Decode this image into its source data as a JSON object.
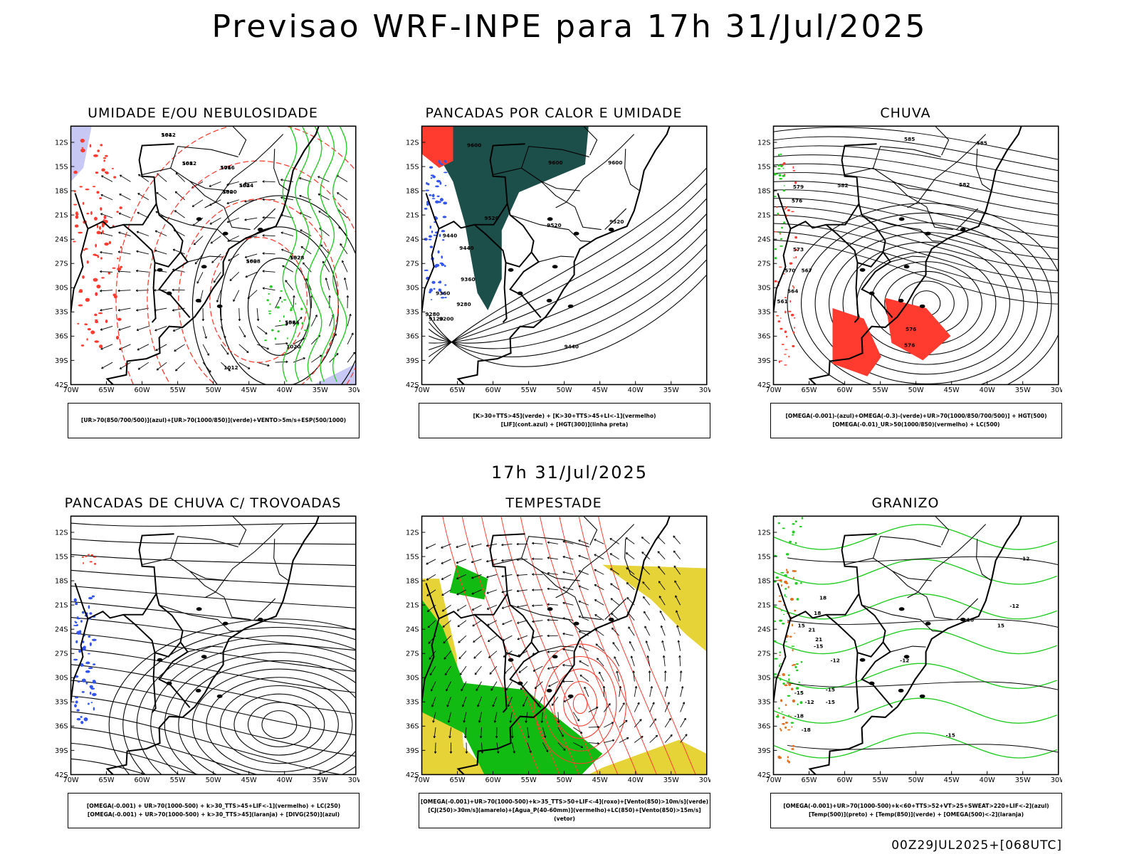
{
  "main_title": "Previsao WRF-INPE  para 17h 31/Jul/2025",
  "mid_title": "17h 31/Jul/2025",
  "footer": "00Z29JUL2025+[068UTC]",
  "axes": {
    "lat_labels": [
      "12S",
      "15S",
      "18S",
      "21S",
      "24S",
      "27S",
      "30S",
      "33S",
      "36S",
      "39S",
      "42S"
    ],
    "lon_labels": [
      "70W",
      "65W",
      "60W",
      "55W",
      "50W",
      "45W",
      "40W",
      "35W",
      "30W"
    ]
  },
  "colors": {
    "coast": "#000000",
    "red": "#ff3b30",
    "green": "#22cc22",
    "blue": "#3355ee",
    "lavender": "#c8c8f4",
    "teal": "#1d4f4a",
    "yellow": "#e6d338",
    "orange": "#e07020",
    "bright_green": "#11bb11"
  },
  "panels": [
    {
      "title": "UMIDADE E/OU NEBULOSIDADE",
      "legend": [
        "[UR>70(850/700/500)](azul)+[UR>70(1000/850)](verde)+VENTO>5m/s+ESP(500/1000)"
      ],
      "contour_labels": [
        "1012",
        "1012",
        "1016",
        "1020",
        "1024",
        "1028",
        "1028",
        "1024",
        "1020",
        "1012",
        "564",
        "568",
        "576",
        "580",
        "584",
        "560",
        "552",
        "556"
      ]
    },
    {
      "title": "PANCADAS POR CALOR E UMIDADE",
      "legend": [
        "[K>30+TTS>45](verde) + [K>30+TTS>45+LI<-1](vermelho)",
        "[LIF](cont.azul) + [HGT(300)](linha preta)"
      ],
      "contour_labels": [
        "9600",
        "9600",
        "9600",
        "9520",
        "9520",
        "9520",
        "9440",
        "9440",
        "9360",
        "9360",
        "9280",
        "9280",
        "9200",
        "9120",
        "9440"
      ]
    },
    {
      "title": "CHUVA",
      "legend": [
        "[OMEGA(-0.001)-(azul)+OMEGA(-0.3)-(verde)+UR>70(1000/850/700/500)] + HGT(500)",
        "[OMEGA(-0.01)_UR>50(1000/850)(vermelho) + LC(500)"
      ],
      "contour_labels": [
        "585",
        "585",
        "582",
        "582",
        "579",
        "576",
        "573",
        "570",
        "567",
        "564",
        "561",
        "576",
        "576"
      ]
    },
    {
      "title": "PANCADAS DE CHUVA C/ TROVOADAS",
      "legend": [
        "[OMEGA(-0.001) + UR>70(1000-500) + k>30_TTS>45+LIF<-1](vermelho) + LC(250)",
        "[OMEGA(-0.001) + UR>70(1000-500) + k>30_TTS>45](laranja) + [DIVG(250)](azul)"
      ],
      "contour_labels": []
    },
    {
      "title": "TEMPESTADE",
      "legend": [
        "[OMEGA(-0.001)+UR>70(1000-500)+k>35_TTS>50+LIF<-4](roxo)+[Vento(850)>10m/s](verde)",
        "[CJ(250)>30m/s](amarelo)+[Agua_P(40-60mm)](vermelho)+LC(850)+[Vento(850)>15m/s](vetor)"
      ],
      "contour_labels": []
    },
    {
      "title": "GRANIZO",
      "legend": [
        "[OMEGA(-0.001)+UR>70(1000-500)+k<60+TTS>52+VT>25+SWEAT>220+LIF<-2](azul)",
        "[Temp(500)](preto) + [Temp(850)](verde) + [OMEGA(500)<-2](laranja)"
      ],
      "contour_labels": [
        "-12",
        "-12",
        "-12",
        "-15",
        "-15",
        "-15",
        "-12",
        "-18",
        "-18",
        "-15",
        "-12",
        "-15",
        "15",
        "18",
        "18",
        "21",
        "21",
        "18",
        "15"
      ]
    }
  ]
}
